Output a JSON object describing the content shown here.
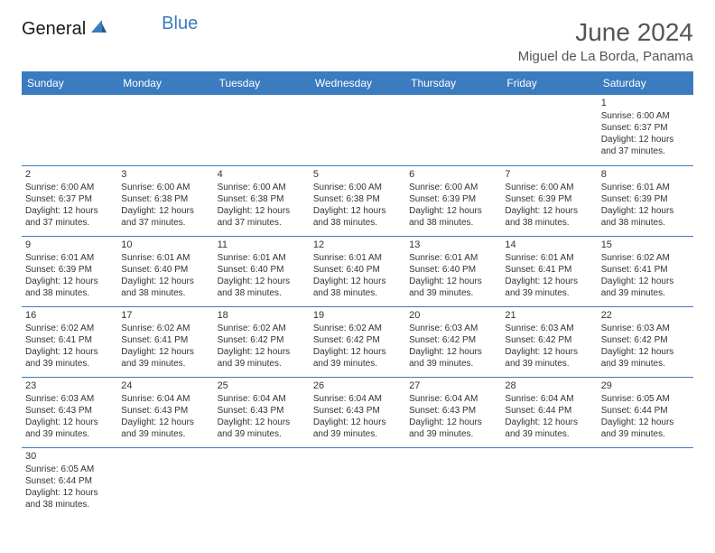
{
  "logo": {
    "text1": "General",
    "text2": "Blue"
  },
  "title": "June 2024",
  "location": "Miguel de La Borda, Panama",
  "colors": {
    "header_bg": "#3b7bbf",
    "header_text": "#ffffff",
    "grid_line": "#3b7bbf",
    "text": "#333333",
    "title_text": "#555555"
  },
  "weekdays": [
    "Sunday",
    "Monday",
    "Tuesday",
    "Wednesday",
    "Thursday",
    "Friday",
    "Saturday"
  ],
  "weeks": [
    [
      null,
      null,
      null,
      null,
      null,
      null,
      {
        "d": "1",
        "sr": "6:00 AM",
        "ss": "6:37 PM",
        "dl": "12 hours and 37 minutes."
      }
    ],
    [
      {
        "d": "2",
        "sr": "6:00 AM",
        "ss": "6:37 PM",
        "dl": "12 hours and 37 minutes."
      },
      {
        "d": "3",
        "sr": "6:00 AM",
        "ss": "6:38 PM",
        "dl": "12 hours and 37 minutes."
      },
      {
        "d": "4",
        "sr": "6:00 AM",
        "ss": "6:38 PM",
        "dl": "12 hours and 37 minutes."
      },
      {
        "d": "5",
        "sr": "6:00 AM",
        "ss": "6:38 PM",
        "dl": "12 hours and 38 minutes."
      },
      {
        "d": "6",
        "sr": "6:00 AM",
        "ss": "6:39 PM",
        "dl": "12 hours and 38 minutes."
      },
      {
        "d": "7",
        "sr": "6:00 AM",
        "ss": "6:39 PM",
        "dl": "12 hours and 38 minutes."
      },
      {
        "d": "8",
        "sr": "6:01 AM",
        "ss": "6:39 PM",
        "dl": "12 hours and 38 minutes."
      }
    ],
    [
      {
        "d": "9",
        "sr": "6:01 AM",
        "ss": "6:39 PM",
        "dl": "12 hours and 38 minutes."
      },
      {
        "d": "10",
        "sr": "6:01 AM",
        "ss": "6:40 PM",
        "dl": "12 hours and 38 minutes."
      },
      {
        "d": "11",
        "sr": "6:01 AM",
        "ss": "6:40 PM",
        "dl": "12 hours and 38 minutes."
      },
      {
        "d": "12",
        "sr": "6:01 AM",
        "ss": "6:40 PM",
        "dl": "12 hours and 38 minutes."
      },
      {
        "d": "13",
        "sr": "6:01 AM",
        "ss": "6:40 PM",
        "dl": "12 hours and 39 minutes."
      },
      {
        "d": "14",
        "sr": "6:01 AM",
        "ss": "6:41 PM",
        "dl": "12 hours and 39 minutes."
      },
      {
        "d": "15",
        "sr": "6:02 AM",
        "ss": "6:41 PM",
        "dl": "12 hours and 39 minutes."
      }
    ],
    [
      {
        "d": "16",
        "sr": "6:02 AM",
        "ss": "6:41 PM",
        "dl": "12 hours and 39 minutes."
      },
      {
        "d": "17",
        "sr": "6:02 AM",
        "ss": "6:41 PM",
        "dl": "12 hours and 39 minutes."
      },
      {
        "d": "18",
        "sr": "6:02 AM",
        "ss": "6:42 PM",
        "dl": "12 hours and 39 minutes."
      },
      {
        "d": "19",
        "sr": "6:02 AM",
        "ss": "6:42 PM",
        "dl": "12 hours and 39 minutes."
      },
      {
        "d": "20",
        "sr": "6:03 AM",
        "ss": "6:42 PM",
        "dl": "12 hours and 39 minutes."
      },
      {
        "d": "21",
        "sr": "6:03 AM",
        "ss": "6:42 PM",
        "dl": "12 hours and 39 minutes."
      },
      {
        "d": "22",
        "sr": "6:03 AM",
        "ss": "6:42 PM",
        "dl": "12 hours and 39 minutes."
      }
    ],
    [
      {
        "d": "23",
        "sr": "6:03 AM",
        "ss": "6:43 PM",
        "dl": "12 hours and 39 minutes."
      },
      {
        "d": "24",
        "sr": "6:04 AM",
        "ss": "6:43 PM",
        "dl": "12 hours and 39 minutes."
      },
      {
        "d": "25",
        "sr": "6:04 AM",
        "ss": "6:43 PM",
        "dl": "12 hours and 39 minutes."
      },
      {
        "d": "26",
        "sr": "6:04 AM",
        "ss": "6:43 PM",
        "dl": "12 hours and 39 minutes."
      },
      {
        "d": "27",
        "sr": "6:04 AM",
        "ss": "6:43 PM",
        "dl": "12 hours and 39 minutes."
      },
      {
        "d": "28",
        "sr": "6:04 AM",
        "ss": "6:44 PM",
        "dl": "12 hours and 39 minutes."
      },
      {
        "d": "29",
        "sr": "6:05 AM",
        "ss": "6:44 PM",
        "dl": "12 hours and 39 minutes."
      }
    ],
    [
      {
        "d": "30",
        "sr": "6:05 AM",
        "ss": "6:44 PM",
        "dl": "12 hours and 38 minutes."
      },
      null,
      null,
      null,
      null,
      null,
      null
    ]
  ],
  "labels": {
    "sunrise": "Sunrise:",
    "sunset": "Sunset:",
    "daylight": "Daylight:"
  }
}
